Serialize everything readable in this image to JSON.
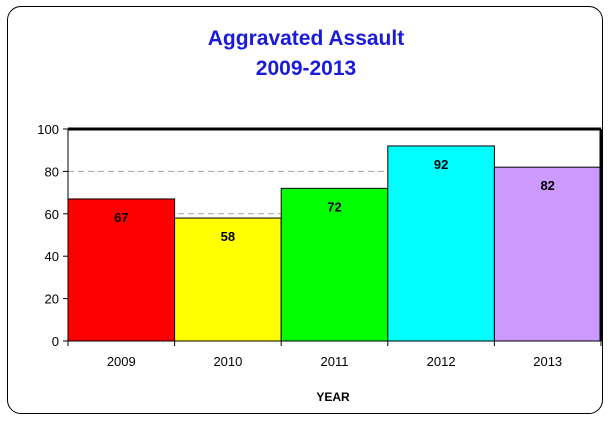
{
  "chart_data": {
    "type": "bar",
    "title": "Aggravated Assault",
    "subtitle": "2009-2013",
    "xlabel": "YEAR",
    "ylabel": "",
    "categories": [
      "2009",
      "2010",
      "2011",
      "2012",
      "2013"
    ],
    "values": [
      67,
      58,
      72,
      92,
      82
    ],
    "colors": [
      "#ff0000",
      "#ffff00",
      "#00ff00",
      "#00ffff",
      "#cc99ff"
    ],
    "ylim": [
      0,
      100
    ],
    "yticks": [
      0,
      20,
      40,
      60,
      80,
      100
    ],
    "grid": "dashed horizontal at 60 and 80",
    "legend": "none"
  },
  "colors": {
    "title": "#1a1adc",
    "frame": "#000000",
    "grid": "#a0a0a0"
  }
}
